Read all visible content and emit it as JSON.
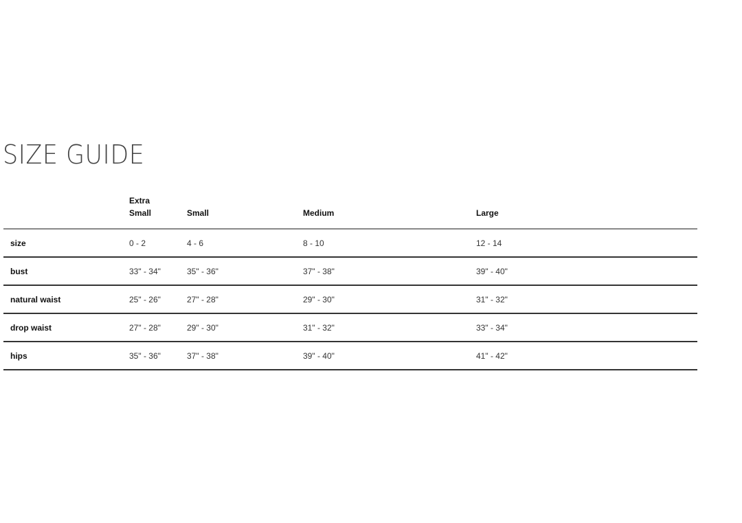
{
  "title": "SIZE GUIDE",
  "table": {
    "headers": [
      "",
      "Extra Small",
      "Small",
      "Medium",
      "Large"
    ],
    "rows": [
      {
        "label": "size",
        "values": [
          "0 - 2",
          "4 - 6",
          "8 - 10",
          "12 - 14"
        ]
      },
      {
        "label": "bust",
        "values": [
          "33\" - 34\"",
          "35\" - 36\"",
          "37\" - 38\"",
          "39\" - 40\""
        ]
      },
      {
        "label": "natural waist",
        "values": [
          "25\" - 26\"",
          "27\" - 28\"",
          "29\" - 30\"",
          "31\" - 32\""
        ]
      },
      {
        "label": "drop waist",
        "values": [
          "27\" - 28\"",
          "29\" - 30\"",
          "31\" - 32\"",
          "33\" - 34\""
        ]
      },
      {
        "label": "hips",
        "values": [
          "35\" - 36\"",
          "37\" - 38\"",
          "39\" - 40\"",
          "41\" - 42\""
        ]
      }
    ]
  }
}
